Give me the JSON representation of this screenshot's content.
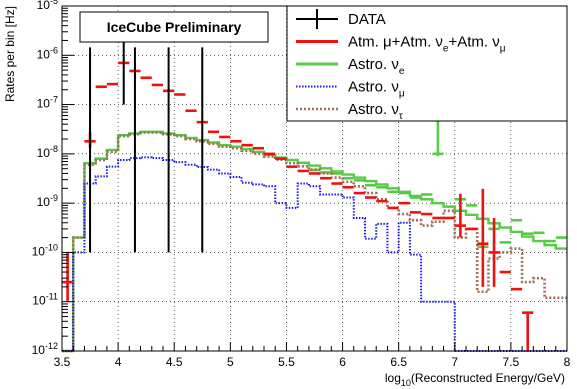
{
  "chart_data": {
    "type": "step",
    "badge": "IceCube Preliminary",
    "ylabel": "Rates per bin [Hz]",
    "xlabel": {
      "prefix": "log",
      "sub": "10",
      "suffix": "(Reconstructed Energy/GeV)"
    },
    "xlim": [
      3.5,
      8.0
    ],
    "ylim": [
      1e-12,
      1e-05
    ],
    "yscale": "log",
    "grid": true,
    "legend_position": "top-right",
    "x_ticks": [
      "3.5",
      "4",
      "4.5",
      "5",
      "5.5",
      "6",
      "6.5",
      "7",
      "7.5",
      "8"
    ],
    "y_ticks": [
      {
        "base": "10",
        "exp": "-12"
      },
      {
        "base": "10",
        "exp": "-11"
      },
      {
        "base": "10",
        "exp": "-10"
      },
      {
        "base": "10",
        "exp": "-9"
      },
      {
        "base": "10",
        "exp": "-8"
      },
      {
        "base": "10",
        "exp": "-7"
      },
      {
        "base": "10",
        "exp": "-6"
      },
      {
        "base": "10",
        "exp": "-5"
      }
    ],
    "legend": [
      {
        "key": "data",
        "parts": [
          {
            "t": "DATA"
          }
        ]
      },
      {
        "key": "atm",
        "parts": [
          {
            "t": "Atm. μ+Atm. ν"
          },
          {
            "t": "e",
            "sub": true
          },
          {
            "t": "+Atm. ν"
          },
          {
            "t": "μ",
            "sub": true
          }
        ]
      },
      {
        "key": "nue",
        "parts": [
          {
            "t": "Astro. ν"
          },
          {
            "t": "e",
            "sub": true
          }
        ]
      },
      {
        "key": "numu",
        "parts": [
          {
            "t": "Astro. ν"
          },
          {
            "t": "μ",
            "sub": true
          }
        ]
      },
      {
        "key": "nutau",
        "parts": [
          {
            "t": "Astro. ν"
          },
          {
            "t": "τ",
            "sub": true
          }
        ]
      }
    ],
    "colors": {
      "data": "#000000",
      "atm": "#ee1111",
      "nue": "#55cc44",
      "numu": "#1a1aee",
      "nutau": "#a0705a"
    },
    "bin_edges": [
      3.5,
      3.6,
      3.7,
      3.8,
      3.9,
      4.0,
      4.1,
      4.2,
      4.3,
      4.4,
      4.5,
      4.6,
      4.7,
      4.8,
      4.9,
      5.0,
      5.1,
      5.2,
      5.3,
      5.4,
      5.5,
      5.6,
      5.7,
      5.8,
      5.9,
      6.0,
      6.1,
      6.2,
      6.3,
      6.4,
      6.5,
      6.6,
      6.7,
      6.8,
      6.9,
      7.0,
      7.1,
      7.2,
      7.3,
      7.4,
      7.5,
      7.6,
      7.7,
      7.8,
      7.9,
      8.0
    ],
    "series": [
      {
        "key": "nue",
        "style": "step-solid",
        "values": [
          1e-12,
          2e-10,
          6.5e-09,
          8e-09,
          1.2e-08,
          2.4e-08,
          2.6e-08,
          2.8e-08,
          2.8e-08,
          2.6e-08,
          2.4e-08,
          2.1e-08,
          1.9e-08,
          1.7e-08,
          1.5e-08,
          1.4e-08,
          1.25e-08,
          1.1e-08,
          9.5e-09,
          8.4e-09,
          7.5e-09,
          6.6e-09,
          5.8e-09,
          5.1e-09,
          4.4e-09,
          3.8e-09,
          3.3e-09,
          2.8e-09,
          2.4e-09,
          2e-09,
          1.7e-09,
          1.4e-09,
          1.2e-09,
          1e-09,
          8.5e-10,
          7e-10,
          5.8e-10,
          4.8e-10,
          3.9e-10,
          3.2e-10,
          2.6e-10,
          2.1e-10,
          1.7e-10,
          1.4e-10,
          1.2e-10
        ]
      },
      {
        "key": "nue",
        "style": "points-cross",
        "x": [
          5.75,
          5.85,
          5.95,
          6.05,
          6.15,
          6.25,
          6.35,
          6.45,
          6.55,
          6.65,
          6.75,
          6.85,
          7.05,
          7.15,
          7.25,
          7.35,
          7.45,
          7.55,
          7.65,
          7.75,
          7.85,
          7.95
        ],
        "y": [
          4.7e-09,
          4.2e-09,
          4e-09,
          3.2e-09,
          2.9e-09,
          2.3e-09,
          2.1e-09,
          1.7e-09,
          1.6e-09,
          1.3e-09,
          1.5e-09,
          1e-08,
          1.2e-09,
          9e-10,
          1.3e-10,
          3e-10,
          1.6e-10,
          4.5e-10,
          2.4e-10,
          2.5e-10,
          1.7e-10,
          2e-10
        ],
        "yerr_lo": [
          0,
          0,
          0,
          0,
          0,
          0,
          0,
          0,
          0,
          0,
          0,
          1e-09,
          0,
          0,
          0,
          0,
          0,
          0,
          0,
          0,
          3e-12,
          0
        ],
        "yerr_hi": [
          0,
          0,
          0,
          0,
          0,
          0,
          0,
          0,
          0,
          0,
          0,
          5e-08,
          0,
          0,
          3.7e-10,
          0,
          0,
          0,
          0,
          0,
          0,
          0
        ]
      },
      {
        "key": "nutau",
        "style": "step-dotted",
        "values": [
          1e-12,
          2e-10,
          6e-09,
          7.5e-09,
          1.1e-08,
          2.3e-08,
          2.5e-08,
          2.7e-08,
          2.7e-08,
          2.5e-08,
          2.3e-08,
          2e-08,
          1.8e-08,
          1.6e-08,
          1.4e-08,
          1.3e-08,
          1.15e-08,
          1e-08,
          8.8e-09,
          7.6e-09,
          6.5e-09,
          5.6e-09,
          4.8e-09,
          4e-09,
          3.3e-09,
          2.7e-09,
          2.2e-09,
          1.6e-09,
          1.2e-09,
          8e-10,
          6e-10,
          4.5e-10,
          3.5e-10,
          4.2e-10,
          7e-10,
          2e-10,
          3e-10,
          1.6e-11,
          7.5e-11,
          1e-10,
          1.2e-10,
          2.5e-11,
          3e-11,
          1.2e-11,
          1.2e-11
        ]
      },
      {
        "key": "numu",
        "style": "step-dotted",
        "values": [
          1e-12,
          1e-10,
          2.5e-09,
          3.5e-09,
          5.5e-09,
          7.5e-09,
          8.2e-09,
          8.5e-09,
          8.2e-09,
          7.5e-09,
          6.8e-09,
          6e-09,
          5.4e-09,
          4.8e-09,
          4e-09,
          3.4e-09,
          2.6e-09,
          2.4e-09,
          2.2e-09,
          1e-09,
          8e-10,
          2.5e-09,
          2.2e-09,
          1.5e-09,
          1.5e-09,
          1.3e-09,
          5e-10,
          1.9e-10,
          3.8e-10,
          1e-10,
          4e-10,
          9e-11,
          1e-11,
          1e-11,
          1e-11,
          1e-12,
          1e-12,
          1e-12,
          1e-12,
          1e-12,
          1e-12,
          1e-12,
          1e-12,
          1e-12,
          1e-12
        ]
      },
      {
        "key": "atm",
        "style": "points-cross",
        "x": [
          3.55,
          3.75,
          3.85,
          3.95,
          4.05,
          4.15,
          4.25,
          4.35,
          4.45,
          4.55,
          4.65,
          4.75,
          4.85,
          4.95,
          5.05,
          5.15,
          5.25,
          5.35,
          5.45,
          5.55,
          5.65,
          5.75,
          5.85,
          5.95,
          6.05,
          6.15,
          6.25,
          6.35,
          6.45,
          6.55,
          6.65,
          6.75,
          6.85,
          6.95,
          7.05,
          7.15,
          7.25,
          7.35,
          7.45,
          7.55,
          7.65
        ],
        "y": [
          2.5e-11,
          1.8e-08,
          2.3e-07,
          2.6e-07,
          7e-07,
          4.8e-07,
          3.5e-07,
          2.5e-07,
          1.9e-07,
          1.6e-07,
          7.5e-08,
          4.4e-08,
          2.8e-08,
          2.2e-08,
          1.8e-08,
          1.5e-08,
          1.3e-08,
          1e-08,
          8e-09,
          5.5e-09,
          4.5e-09,
          4e-09,
          3.2e-09,
          2.5e-09,
          2.1e-09,
          1.6e-09,
          1.3e-09,
          1.1e-09,
          8e-10,
          1e-09,
          6.5e-10,
          6e-10,
          5e-10,
          5e-10,
          3.5e-10,
          3e-10,
          1.5e-10,
          1e-10,
          4e-11,
          1.8e-11,
          6e-12
        ],
        "yerr_lo": [
          1.5e-11,
          5e-09,
          0,
          0,
          0,
          0,
          0,
          0,
          0,
          0,
          0,
          0,
          0,
          0,
          0,
          0,
          0,
          0,
          0,
          0,
          0,
          0,
          0,
          0,
          0,
          0,
          0,
          0,
          0,
          0,
          0,
          0,
          0,
          0,
          1.5e-10,
          0,
          1.3e-10,
          8e-11,
          0,
          0,
          1e-11
        ],
        "yerr_hi": [
          7.5e-11,
          1e-08,
          0,
          0,
          0,
          0,
          0,
          0,
          0,
          0,
          0,
          0,
          0,
          0,
          0,
          0,
          0,
          0,
          0,
          0,
          0,
          0,
          0,
          0,
          0,
          0,
          0,
          0,
          0,
          0,
          0,
          0,
          0,
          0,
          1.2e-09,
          0,
          1.8e-09,
          4e-10,
          0,
          0,
          0
        ],
        "x_override_note": ""
      },
      {
        "key": "data",
        "style": "points-cross",
        "x": [
          3.75,
          4.05,
          4.15,
          4.45,
          4.75
        ],
        "y": [
          3.5e-07,
          1.2e-06,
          3.5e-07,
          3.5e-07,
          3.5e-07
        ],
        "yerr_lo": [
          3.499e-07,
          1.1e-06,
          3.499e-07,
          3.499e-07,
          3.499e-07
        ],
        "yerr_hi": [
          1.1e-06,
          1.8e-06,
          1.1e-06,
          1.1e-06,
          1.1e-06
        ]
      }
    ]
  }
}
